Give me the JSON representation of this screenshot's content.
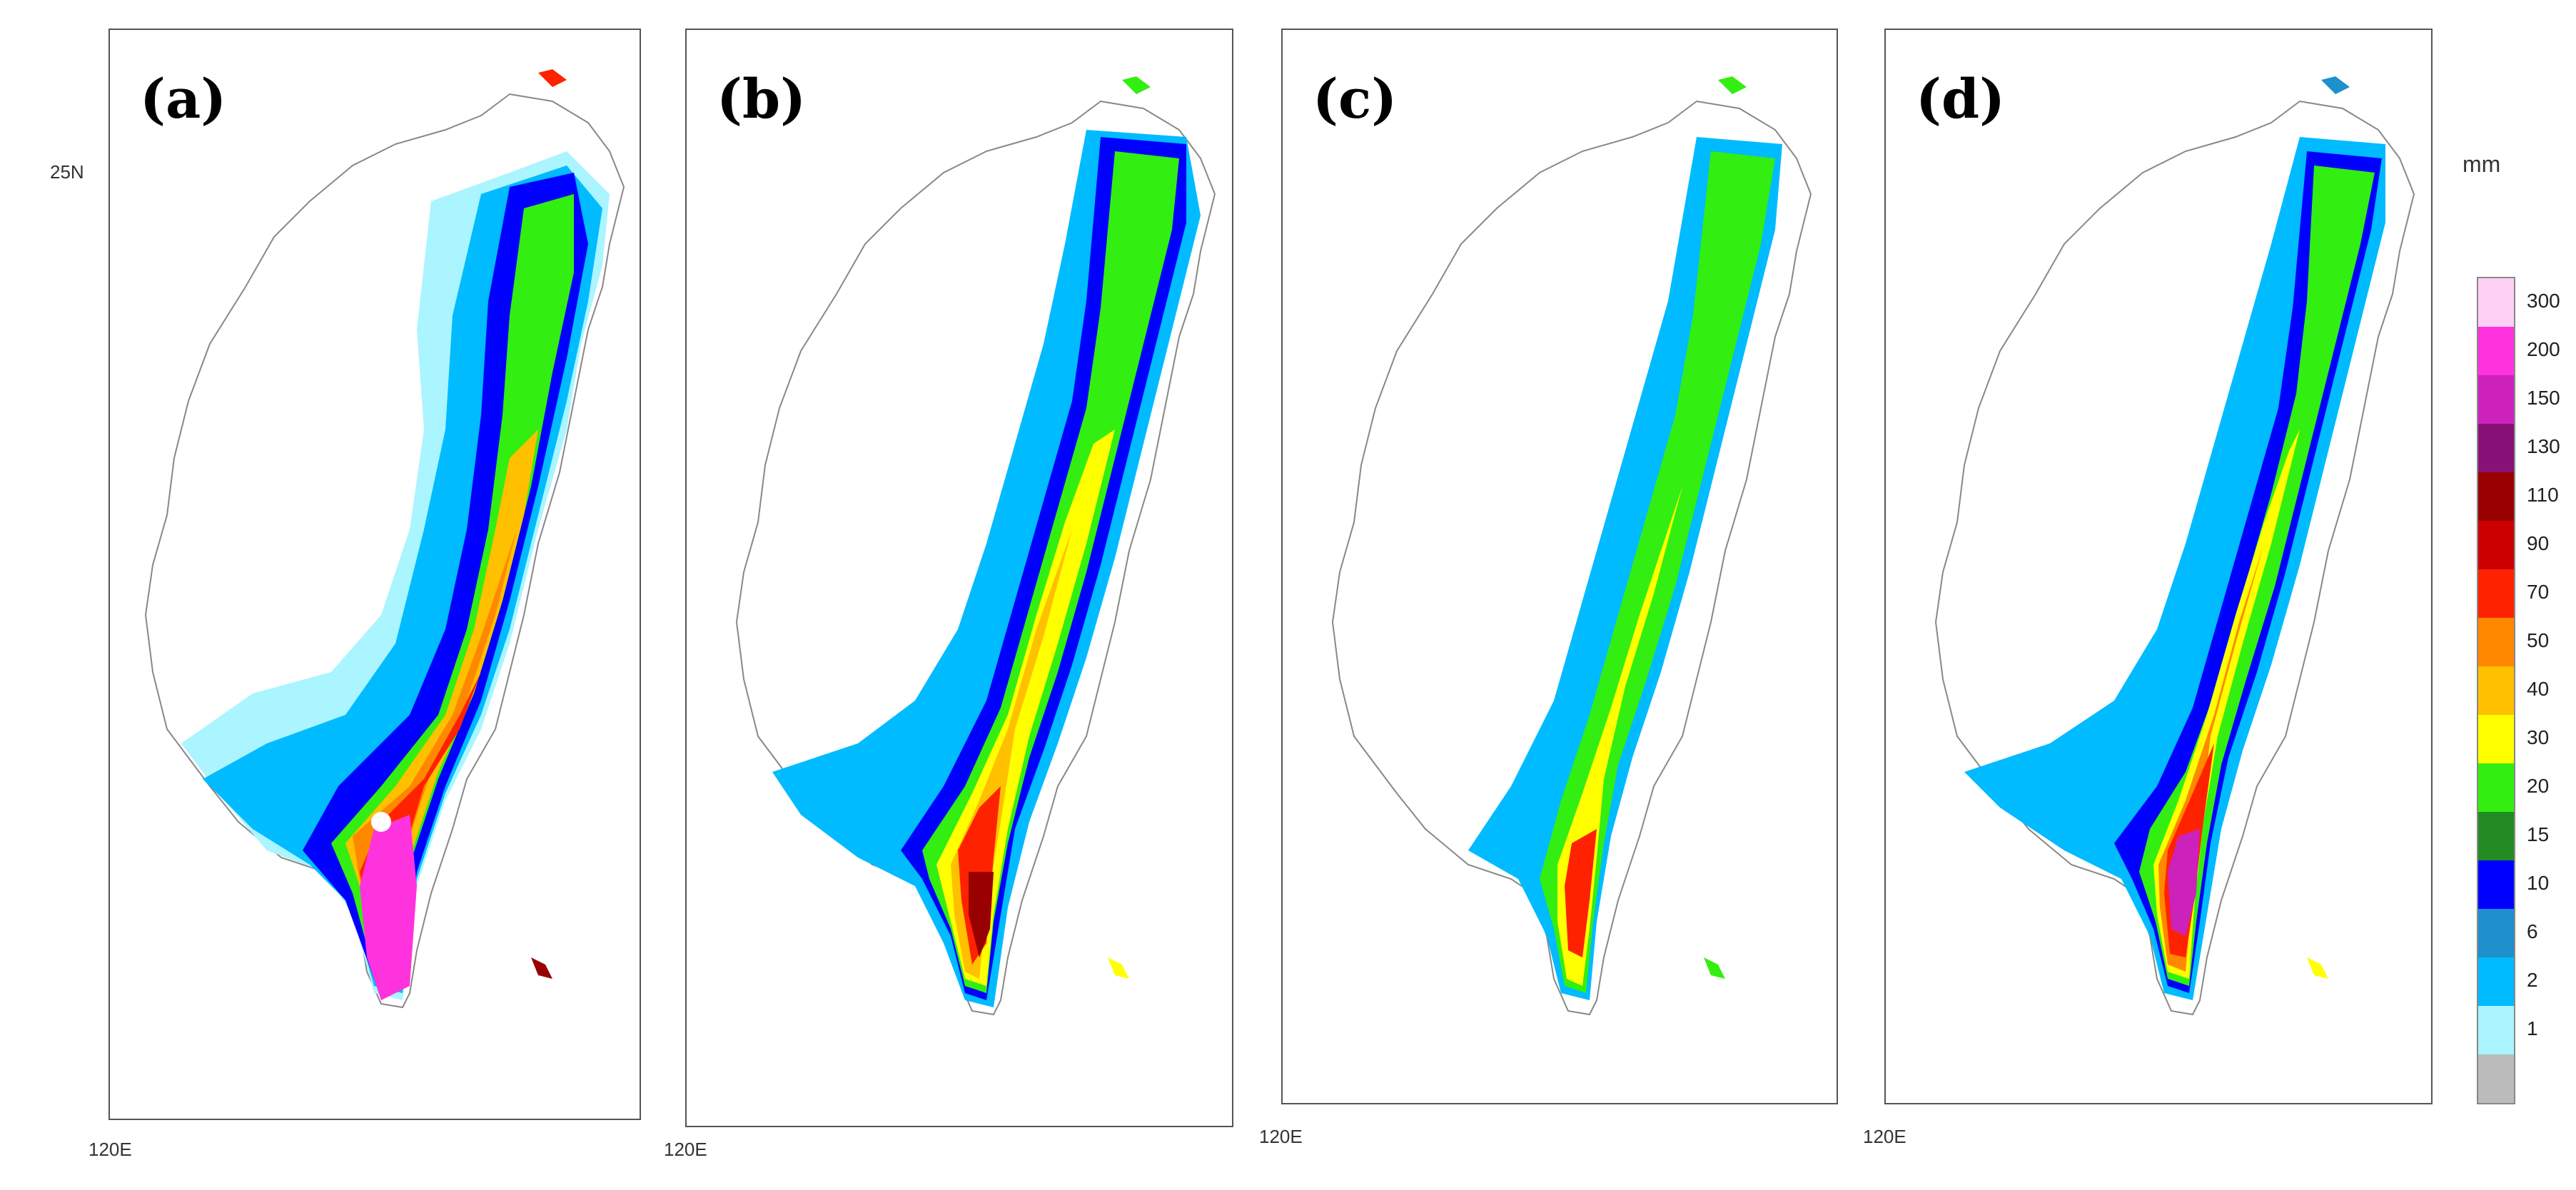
{
  "panels": [
    {
      "label": "(a)",
      "lon_label": "120E",
      "lat_label": "25N"
    },
    {
      "label": "(b)",
      "lon_label": "120E"
    },
    {
      "label": "(c)",
      "lon_label": "120E"
    },
    {
      "label": "(d)",
      "lon_label": "120E"
    }
  ],
  "legend": {
    "unit": "mm",
    "levels": [
      {
        "label": "300",
        "color": "#ffd0f5"
      },
      {
        "label": "200",
        "color": "#ff33dd"
      },
      {
        "label": "150",
        "color": "#cc22bb"
      },
      {
        "label": "130",
        "color": "#881177"
      },
      {
        "label": "110",
        "color": "#990000"
      },
      {
        "label": "90",
        "color": "#cc0000"
      },
      {
        "label": "70",
        "color": "#ff2200"
      },
      {
        "label": "50",
        "color": "#ff8800"
      },
      {
        "label": "40",
        "color": "#ffc000"
      },
      {
        "label": "30",
        "color": "#ffff00"
      },
      {
        "label": "20",
        "color": "#33ee11"
      },
      {
        "label": "15",
        "color": "#228b22"
      },
      {
        "label": "10",
        "color": "#0000ff"
      },
      {
        "label": "6",
        "color": "#1e90cc"
      },
      {
        "label": "2",
        "color": "#00bbff"
      },
      {
        "label": "1",
        "color": "#aaf5ff"
      },
      {
        "label": "",
        "color": "#bbbbbb"
      }
    ]
  }
}
